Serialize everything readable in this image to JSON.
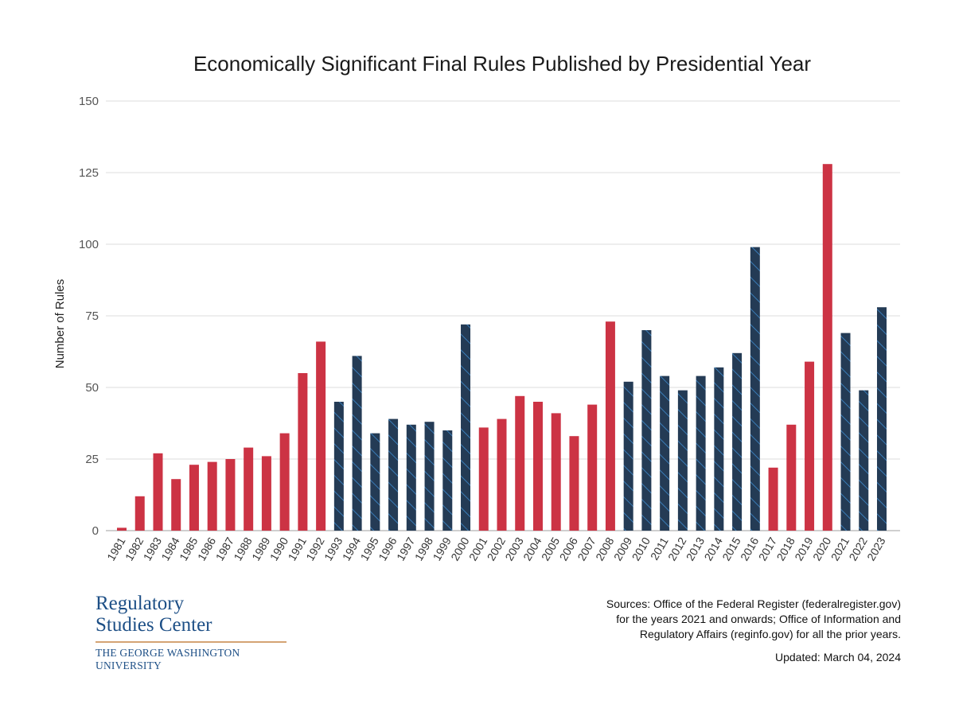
{
  "chart_data": {
    "type": "bar",
    "title": "Economically Significant Final Rules Published by Presidential Year",
    "xlabel": "",
    "ylabel": "Number of Rules",
    "ylim": [
      0,
      150
    ],
    "yticks": [
      0,
      25,
      50,
      75,
      100,
      125,
      150
    ],
    "grid": true,
    "legend": "none",
    "categories": [
      "1981",
      "1982",
      "1983",
      "1984",
      "1985",
      "1986",
      "1987",
      "1988",
      "1989",
      "1990",
      "1991",
      "1992",
      "1993",
      "1994",
      "1995",
      "1996",
      "1997",
      "1998",
      "1999",
      "2000",
      "2001",
      "2002",
      "2003",
      "2004",
      "2005",
      "2006",
      "2007",
      "2008",
      "2009",
      "2010",
      "2011",
      "2012",
      "2013",
      "2014",
      "2015",
      "2016",
      "2017",
      "2018",
      "2019",
      "2020",
      "2021",
      "2022",
      "2023"
    ],
    "values": [
      1,
      12,
      27,
      18,
      23,
      24,
      25,
      29,
      26,
      34,
      55,
      66,
      45,
      61,
      34,
      39,
      37,
      38,
      35,
      72,
      36,
      39,
      47,
      45,
      41,
      33,
      44,
      73,
      52,
      70,
      54,
      49,
      54,
      57,
      62,
      99,
      22,
      37,
      59,
      128,
      69,
      49,
      78
    ],
    "party": [
      "R",
      "R",
      "R",
      "R",
      "R",
      "R",
      "R",
      "R",
      "R",
      "R",
      "R",
      "R",
      "D",
      "D",
      "D",
      "D",
      "D",
      "D",
      "D",
      "D",
      "R",
      "R",
      "R",
      "R",
      "R",
      "R",
      "R",
      "R",
      "D",
      "D",
      "D",
      "D",
      "D",
      "D",
      "D",
      "D",
      "R",
      "R",
      "R",
      "R",
      "D",
      "D",
      "D"
    ],
    "colors": {
      "R": "#cc3344",
      "D": "#243b55",
      "D_hatch": "#3f8ccf",
      "baseline": "#cfcfcf"
    }
  },
  "branding": {
    "name_line1": "Regulatory",
    "name_line2": "Studies Center",
    "university": "THE GEORGE WASHINGTON UNIVERSITY"
  },
  "notes": {
    "sources_line1": "Sources: Office of the Federal Register (federalregister.gov)",
    "sources_line2": "for the years 2021 and onwards; Office of Information and",
    "sources_line3": "Regulatory Affairs (reginfo.gov) for all the prior years.",
    "updated": "Updated: March 04, 2024"
  }
}
